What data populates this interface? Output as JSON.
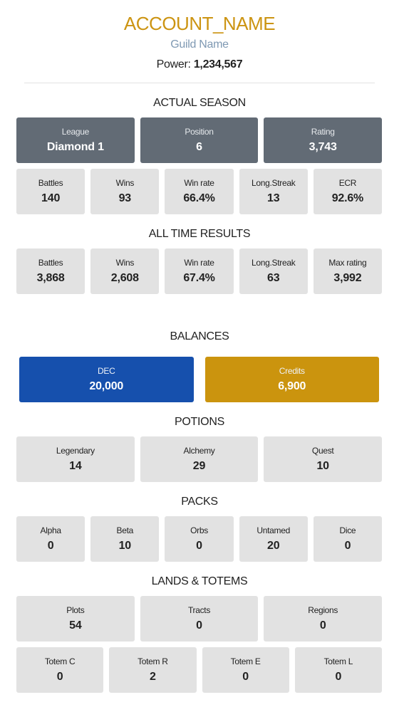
{
  "header": {
    "account_name": "ACCOUNT_NAME",
    "guild_name": "Guild Name",
    "power_label": "Power:",
    "power_value": "1,234,567"
  },
  "actual_season": {
    "title": "ACTUAL SEASON",
    "primary": [
      {
        "label": "League",
        "value": "Diamond 1"
      },
      {
        "label": "Position",
        "value": "6"
      },
      {
        "label": "Rating",
        "value": "3,743"
      }
    ],
    "stats": [
      {
        "label": "Battles",
        "value": "140"
      },
      {
        "label": "Wins",
        "value": "93"
      },
      {
        "label": "Win rate",
        "value": "66.4%"
      },
      {
        "label": "Long.Streak",
        "value": "13"
      },
      {
        "label": "ECR",
        "value": "92.6%"
      }
    ]
  },
  "all_time": {
    "title": "ALL TIME RESULTS",
    "stats": [
      {
        "label": "Battles",
        "value": "3,868"
      },
      {
        "label": "Wins",
        "value": "2,608"
      },
      {
        "label": "Win rate",
        "value": "67.4%"
      },
      {
        "label": "Long.Streak",
        "value": "63"
      },
      {
        "label": "Max rating",
        "value": "3,992"
      }
    ]
  },
  "balances": {
    "title": "BALANCES",
    "items": [
      {
        "label": "DEC",
        "value": "20,000",
        "color": "#1650ad"
      },
      {
        "label": "Credits",
        "value": "6,900",
        "color": "#cb940e"
      }
    ]
  },
  "potions": {
    "title": "POTIONS",
    "items": [
      {
        "label": "Legendary",
        "value": "14"
      },
      {
        "label": "Alchemy",
        "value": "29"
      },
      {
        "label": "Quest",
        "value": "10"
      }
    ]
  },
  "packs": {
    "title": "PACKS",
    "items": [
      {
        "label": "Alpha",
        "value": "0"
      },
      {
        "label": "Beta",
        "value": "10"
      },
      {
        "label": "Orbs",
        "value": "0"
      },
      {
        "label": "Untamed",
        "value": "20"
      },
      {
        "label": "Dice",
        "value": "0"
      }
    ]
  },
  "lands": {
    "title": "LANDS & TOTEMS",
    "land_items": [
      {
        "label": "Plots",
        "value": "54"
      },
      {
        "label": "Tracts",
        "value": "0"
      },
      {
        "label": "Regions",
        "value": "0"
      }
    ],
    "totem_items": [
      {
        "label": "Totem C",
        "value": "0"
      },
      {
        "label": "Totem R",
        "value": "2"
      },
      {
        "label": "Totem E",
        "value": "0"
      },
      {
        "label": "Totem L",
        "value": "0"
      }
    ]
  }
}
